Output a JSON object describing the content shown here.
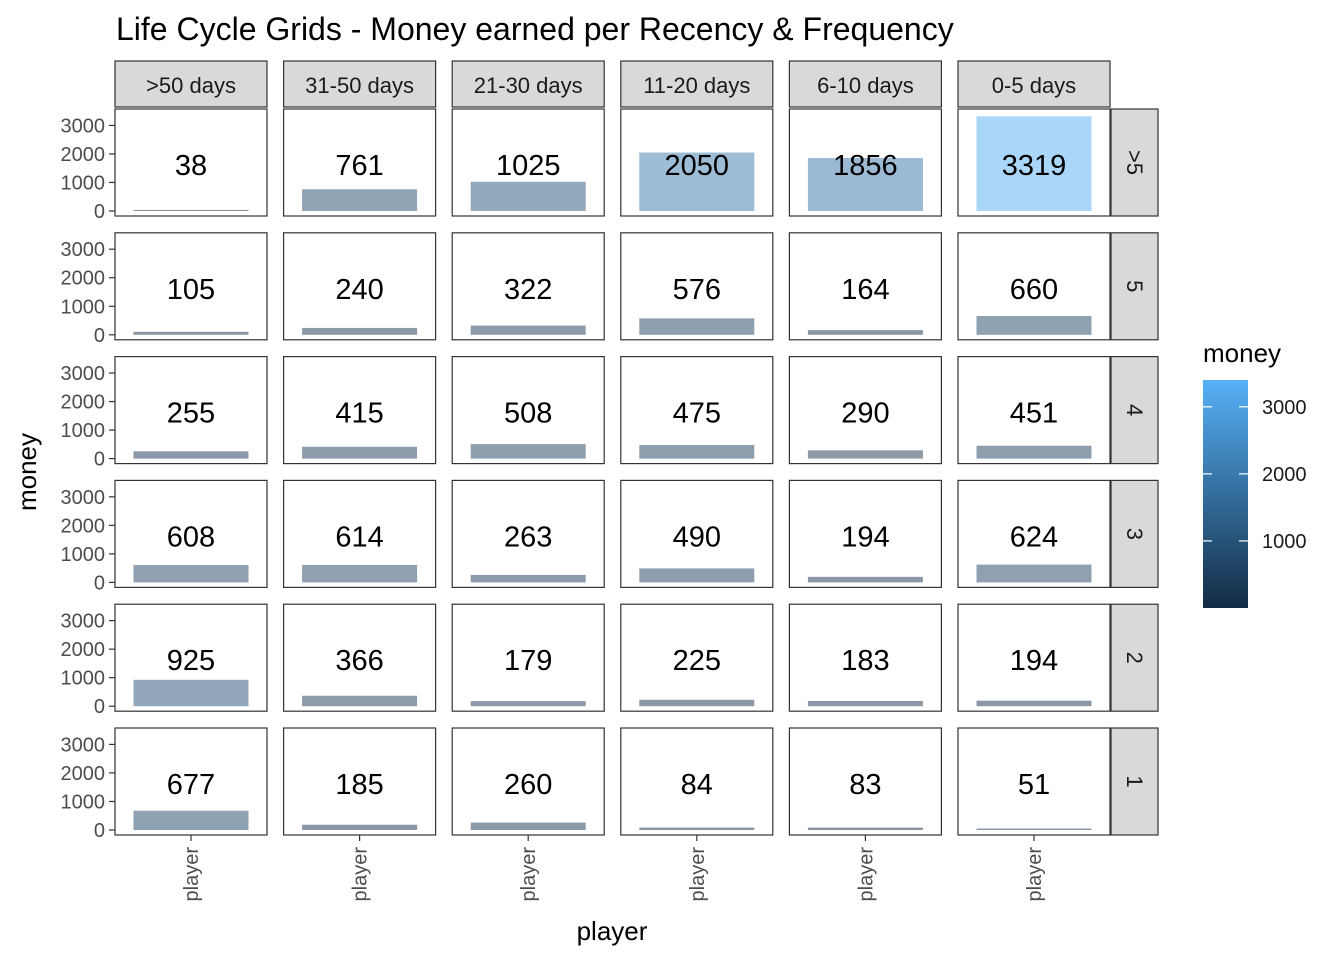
{
  "chart_data": {
    "type": "bar",
    "title": "Life Cycle Grids - Money earned per Recency & Frequency",
    "xlabel": "player",
    "ylabel": "money",
    "x_tick_label": "player",
    "ylim": [
      0,
      3400
    ],
    "y_ticks": [
      0,
      1000,
      2000,
      3000
    ],
    "column_facets": [
      ">50 days",
      "31-50 days",
      "21-30 days",
      "11-20 days",
      "6-10 days",
      "0-5 days"
    ],
    "row_facets": [
      ">5",
      "5",
      "4",
      "3",
      "2",
      "1"
    ],
    "values": [
      [
        38,
        761,
        1025,
        2050,
        1856,
        3319
      ],
      [
        105,
        240,
        322,
        576,
        164,
        660
      ],
      [
        255,
        415,
        508,
        475,
        290,
        451
      ],
      [
        608,
        614,
        263,
        490,
        194,
        624
      ],
      [
        925,
        366,
        179,
        225,
        183,
        194
      ],
      [
        677,
        185,
        260,
        84,
        83,
        51
      ]
    ],
    "legend": {
      "title": "money",
      "ticks": [
        1000,
        2000,
        3000
      ],
      "range": [
        0,
        3400
      ],
      "color_low": "#132B43",
      "color_high": "#56B1F7",
      "placement": "right"
    },
    "bar_alpha": 0.5,
    "grid": false
  }
}
